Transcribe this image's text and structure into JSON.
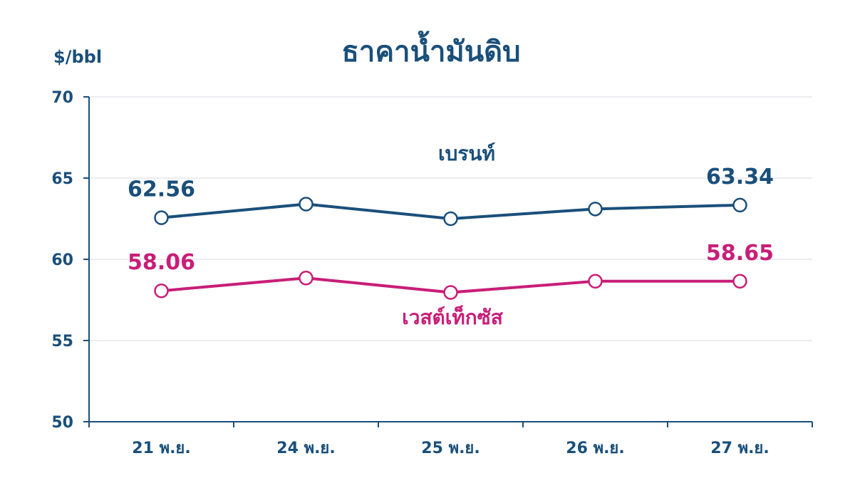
{
  "chart_data": {
    "type": "line",
    "title": "ธาคาน้ำมันดิบ",
    "ylabel": "$/bbl",
    "xlabel": "",
    "ylim": [
      50,
      70
    ],
    "yticks": [
      50,
      55,
      60,
      65,
      70
    ],
    "categories": [
      "21 พ.ย.",
      "24 พ.ย.",
      "25 พ.ย.",
      "26 พ.ย.",
      "27 พ.ย."
    ],
    "grid": true,
    "series": [
      {
        "name": "เบรนท์",
        "values": [
          62.56,
          63.4,
          62.5,
          63.1,
          63.34
        ],
        "labels": [
          "62.56",
          "",
          "",
          "",
          "63.34"
        ],
        "color": "#1a4f7a"
      },
      {
        "name": "เวสต์เท็กซัส",
        "values": [
          58.06,
          58.85,
          57.96,
          58.65,
          58.65
        ],
        "labels": [
          "58.06",
          "",
          "",
          "",
          "58.65"
        ],
        "color": "#c81e78"
      }
    ]
  }
}
